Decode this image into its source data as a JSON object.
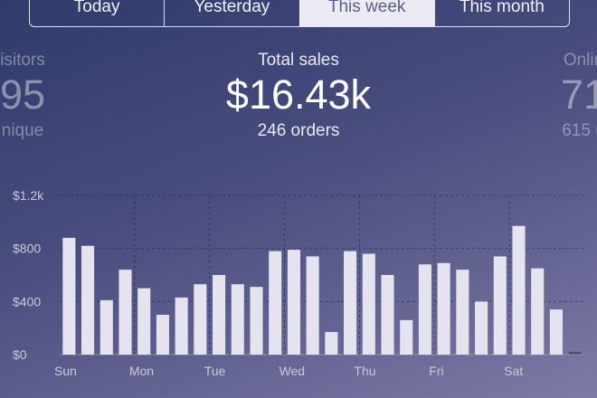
{
  "range_tabs": [
    {
      "label": "Today",
      "active": false
    },
    {
      "label": "Yesterday",
      "active": false
    },
    {
      "label": "This week",
      "active": true
    },
    {
      "label": "This month",
      "active": false
    }
  ],
  "stats": {
    "visitors": {
      "label": "isitors",
      "value": "95",
      "sub": "nique"
    },
    "sales": {
      "label": "Total sales",
      "value": "$16.43k",
      "sub": "246 orders"
    },
    "online": {
      "label": "Onlin",
      "value": "71",
      "sub": "615 u"
    }
  },
  "chart_data": {
    "type": "bar",
    "title": "",
    "xlabel": "",
    "ylabel": "",
    "ylim": [
      0,
      1200
    ],
    "y_ticks": [
      {
        "value": 0,
        "label": "$0"
      },
      {
        "value": 400,
        "label": "$400"
      },
      {
        "value": 800,
        "label": "$800"
      },
      {
        "value": 1200,
        "label": "$1.2k"
      }
    ],
    "day_labels": [
      "Sun",
      "Mon",
      "Tue",
      "Wed",
      "Thu",
      "Fri",
      "Sat"
    ],
    "bars_per_day": 4,
    "values": [
      880,
      820,
      410,
      640,
      500,
      300,
      430,
      530,
      600,
      530,
      510,
      780,
      790,
      740,
      170,
      780,
      760,
      600,
      260,
      680,
      690,
      640,
      400,
      740,
      970,
      650,
      340,
      20
    ],
    "bar_color": "#e4e3ef",
    "grid": true
  }
}
